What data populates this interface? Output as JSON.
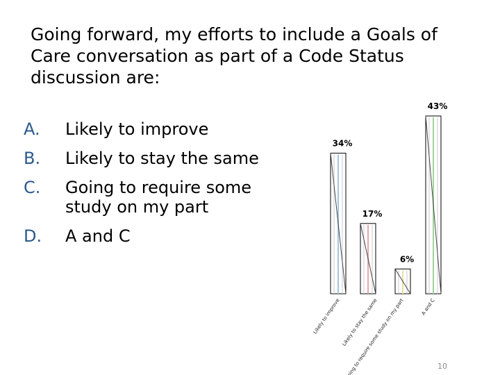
{
  "title": "Going forward, my efforts to include a Goals of Care conversation as part of a Code Status discussion are:",
  "options": [
    {
      "letter": "A.",
      "text": "Likely to improve"
    },
    {
      "letter": "B.",
      "text": "Likely to stay the same"
    },
    {
      "letter": "C.",
      "text": "Going to require some study on my part"
    },
    {
      "letter": "D.",
      "text": "A and C"
    }
  ],
  "page_number": "10",
  "chart_data": {
    "type": "bar",
    "categories": [
      "Likely to improve",
      "Likely to stay the same",
      "Going to require some study on my part",
      "A and C"
    ],
    "values": [
      34,
      17,
      6,
      43
    ],
    "value_labels": [
      "34%",
      "17%",
      "6%",
      "43%"
    ],
    "ylim": [
      0,
      43
    ],
    "grid": false,
    "colors": {
      "bar_fill": "#ffffff",
      "bar_outline": "#000000",
      "stripe_blue": "#9ec6e4",
      "stripe_red": "#e4a6a6",
      "stripe_yellow": "#e8e0a0",
      "stripe_green": "#9fd49a"
    }
  }
}
